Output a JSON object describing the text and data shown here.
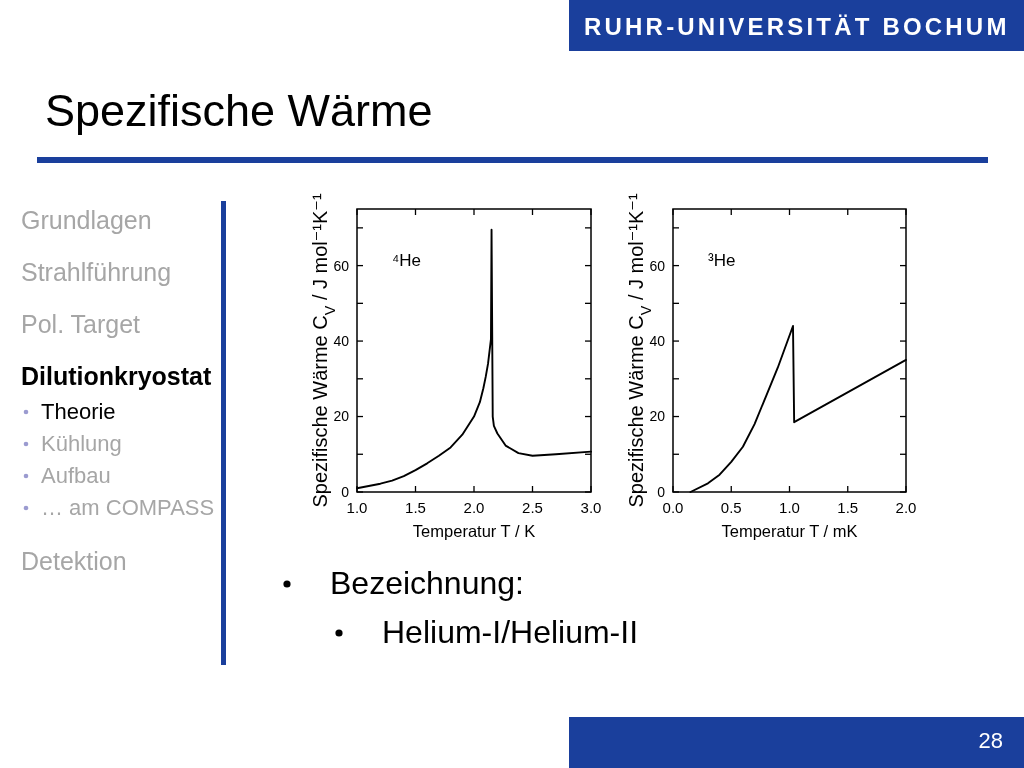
{
  "chart_data": [
    {
      "type": "other",
      "title": "Spezifische Wärme",
      "annotations": [
        "RUHR-UNIVERSITÄT BOCHUM",
        "Grundlagen",
        "Strahlführung",
        "Pol. Target",
        "Dilutionkryostat",
        "Theorie",
        "Kühlung",
        "Aufbau",
        "… am COMPASS",
        "Detektion"
      ]
    },
    {
      "type": "line",
      "xlabel": "Temperatur T / K",
      "ylabel": "Spezifische Wärme C$_{V}$ / J mol⁻¹K⁻¹",
      "annotations": [
        "⁴He"
      ],
      "color": "#000000",
      "x": [
        1.0,
        1.1,
        1.2,
        1.3,
        1.4,
        1.5,
        1.6,
        1.7,
        1.8,
        1.9,
        2.0,
        2.05,
        2.08,
        2.1,
        2.12,
        2.145,
        2.15,
        2.16,
        2.17,
        2.2,
        2.27,
        2.38,
        2.5,
        2.7,
        3.0
      ],
      "values": [
        1.0,
        1.6,
        2.2,
        3.0,
        4.2,
        5.8,
        7.6,
        9.6,
        11.8,
        15.2,
        20,
        23.8,
        27.5,
        30.5,
        34,
        40.5,
        69.5,
        20,
        17.5,
        15.5,
        12.3,
        10.3,
        9.6,
        10,
        10.7
      ],
      "xlim": [
        1,
        3
      ],
      "ylim": [
        0,
        75
      ],
      "xticks": [
        {
          "value": 1,
          "label": "1.0"
        },
        1.5,
        {
          "value": 2,
          "label": "2.0"
        },
        2.5,
        {
          "value": 3,
          "label": "3.0"
        }
      ],
      "yticks": [
        0,
        {
          "value": 10,
          "label": null
        },
        20,
        {
          "value": 30,
          "label": null
        },
        40,
        {
          "value": 50,
          "label": null
        },
        60,
        {
          "value": 70,
          "label": null
        }
      ]
    },
    {
      "type": "line",
      "xlabel": "Temperatur T / mK",
      "ylabel": "Spezifische Wärme C$_{V}$ / J mol⁻¹K⁻¹",
      "annotations": [
        "³He"
      ],
      "color": "#000000",
      "x": [
        0.15,
        0.3,
        0.4,
        0.5,
        0.6,
        0.7,
        0.8,
        0.9,
        1.03,
        1.04,
        2.0
      ],
      "values": [
        0,
        2.3,
        4.6,
        8,
        12,
        18,
        25.5,
        33,
        44,
        18.5,
        35
      ],
      "xlim": [
        0,
        2
      ],
      "ylim": [
        0,
        75
      ],
      "xticks": [
        {
          "value": 0,
          "label": "0.0"
        },
        0.5,
        {
          "value": 1,
          "label": "1.0"
        },
        1.5,
        {
          "value": 2,
          "label": "2.0"
        }
      ],
      "yticks": [
        0,
        {
          "value": 10,
          "label": null
        },
        20,
        {
          "value": 30,
          "label": null
        },
        40,
        {
          "value": 50,
          "label": null
        },
        60,
        {
          "value": 70,
          "label": null
        }
      ]
    },
    {
      "type": "other",
      "annotations": [
        "Bezeichnung:",
        "Helium-I/Helium-II",
        "28"
      ]
    }
  ]
}
